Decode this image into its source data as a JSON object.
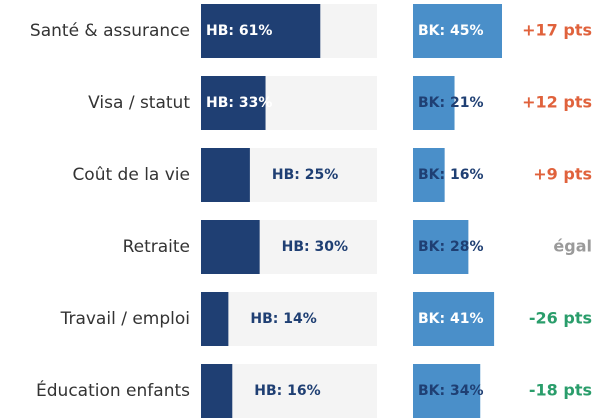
{
  "chart_data": {
    "type": "paired-bar",
    "categories": [
      "Santé & assurance",
      "Visa / statut",
      "Coût de la vie",
      "Retraite",
      "Travail / emploi",
      "Éducation enfants"
    ],
    "series": [
      {
        "color": "#1f3f73",
        "track_color": "#f4f4f4",
        "xlim": [
          0,
          90
        ],
        "values": [
          61,
          33,
          25,
          30,
          14,
          16
        ],
        "value_labels": [
          "HB: 61%",
          "HB: 33%",
          "HB: 25%",
          "HB: 30%",
          "HB: 14%",
          "HB: 16%"
        ]
      },
      {
        "color": "#4a8fc9",
        "xlim": [
          0,
          45
        ],
        "values": [
          45,
          21,
          16,
          28,
          41,
          34
        ],
        "value_labels": [
          "BK: 45%",
          "BK: 21%",
          "BK: 16%",
          "BK: 28%",
          "BK: 41%",
          "BK: 34%"
        ]
      }
    ],
    "annotations": [
      {
        "text": "+17 pts",
        "color": "#e0623c"
      },
      {
        "text": "+12 pts",
        "color": "#e0623c"
      },
      {
        "text": "+9 pts",
        "color": "#e0623c"
      },
      {
        "text": "égal",
        "color": "#9a9a9a"
      },
      {
        "text": "-26 pts",
        "color": "#2a9d6b"
      },
      {
        "text": "-18 pts",
        "color": "#2a9d6b"
      }
    ]
  }
}
